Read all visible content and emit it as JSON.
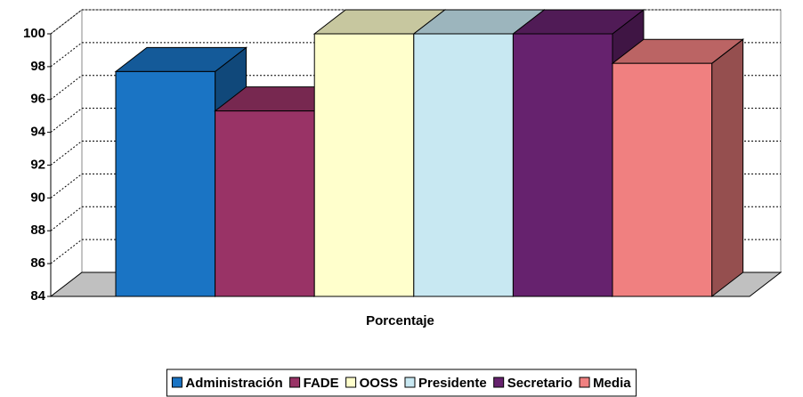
{
  "chart_data": {
    "type": "bar3d",
    "categories": [
      "Porcentaje"
    ],
    "series": [
      {
        "name": "Administración",
        "color": "#1a74c4",
        "values": [
          97.7
        ]
      },
      {
        "name": "FADE",
        "color": "#993366",
        "values": [
          95.3
        ]
      },
      {
        "name": "OOSS",
        "color": "#ffffcc",
        "values": [
          100
        ]
      },
      {
        "name": "Presidente",
        "color": "#c8e8f2",
        "values": [
          100
        ]
      },
      {
        "name": "Secretario",
        "color": "#66226e",
        "values": [
          100
        ]
      },
      {
        "name": "Media",
        "color": "#f08080",
        "values": [
          98.2
        ]
      }
    ],
    "ylim": [
      84,
      100
    ],
    "yticks": [
      84,
      86,
      88,
      90,
      92,
      94,
      96,
      98,
      100
    ],
    "grid": true,
    "legend": "bottom"
  }
}
